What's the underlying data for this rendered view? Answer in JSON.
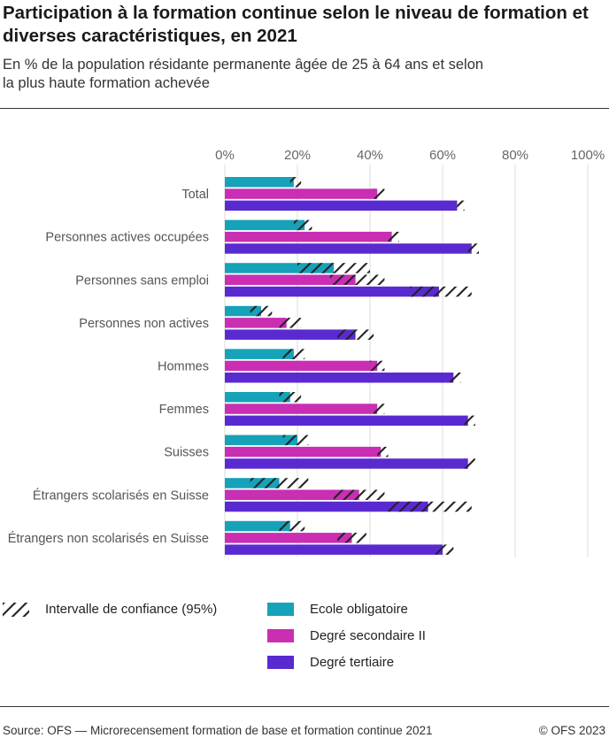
{
  "title": "Participation à la formation continue selon le niveau de formation et diverses caractéristiques, en 2021",
  "subtitle": "En % de la population résidante permanente âgée de 25 à 64 ans et selon la plus haute formation achevée",
  "source": "Source: OFS — Microrecensement formation de base et formation continue 2021",
  "copyright": "© OFS 2023",
  "legend": {
    "ci_label": "Intervalle de confiance (95%)",
    "series_labels": [
      "Ecole obligatoire",
      "Degré secondaire II",
      "Degré tertiaire"
    ]
  },
  "colors": {
    "Ecole obligatoire": "#16a2b8",
    "Degré secondaire II": "#c92eb3",
    "Degré tertiaire": "#5a2ad1",
    "ci_hatch": "#222222"
  },
  "chart_data": {
    "type": "bar",
    "orientation": "horizontal",
    "xlim": [
      0,
      100
    ],
    "x_ticks": [
      "0%",
      "20%",
      "40%",
      "60%",
      "80%",
      "100%"
    ],
    "grid": true,
    "legend_position": "bottom",
    "categories": [
      "Total",
      "Personnes actives occupées",
      "Personnes sans emploi",
      "Personnes non actives",
      "Hommes",
      "Femmes",
      "Suisses",
      "Étrangers scolarisés en Suisse",
      "Étrangers non scolarisés en Suisse"
    ],
    "series": [
      {
        "name": "Ecole obligatoire",
        "values": [
          19,
          22,
          30,
          10,
          19,
          18,
          20,
          15,
          18
        ],
        "ci": [
          [
            18,
            21
          ],
          [
            19,
            24
          ],
          [
            20,
            40
          ],
          [
            7,
            13
          ],
          [
            16,
            22
          ],
          [
            15,
            21
          ],
          [
            16,
            23
          ],
          [
            7,
            23
          ],
          [
            15,
            22
          ]
        ]
      },
      {
        "name": "Degré secondaire II",
        "values": [
          42,
          46,
          36,
          17,
          42,
          42,
          43,
          37,
          35
        ],
        "ci": [
          [
            41,
            44
          ],
          [
            45,
            48
          ],
          [
            29,
            44
          ],
          [
            15,
            21
          ],
          [
            40,
            44
          ],
          [
            41,
            44
          ],
          [
            42,
            45
          ],
          [
            30,
            44
          ],
          [
            31,
            39
          ]
        ]
      },
      {
        "name": "Degré tertiaire",
        "values": [
          64,
          68,
          59,
          36,
          63,
          67,
          67,
          56,
          60
        ],
        "ci": [
          [
            64,
            66
          ],
          [
            67,
            70
          ],
          [
            51,
            68
          ],
          [
            31,
            41
          ],
          [
            62,
            65
          ],
          [
            66,
            69
          ],
          [
            66,
            69
          ],
          [
            45,
            68
          ],
          [
            58,
            63
          ]
        ]
      }
    ]
  }
}
